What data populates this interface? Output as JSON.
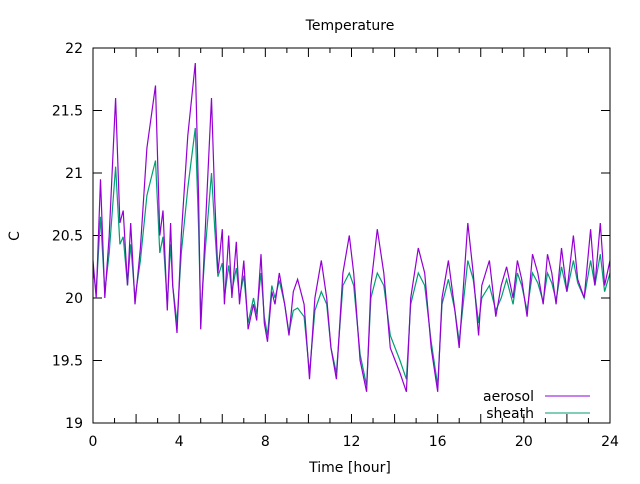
{
  "chart_data": {
    "type": "line",
    "title": "Temperature",
    "xlabel": "Time [hour]",
    "ylabel": "C",
    "xlim": [
      0,
      24
    ],
    "ylim": [
      19,
      22
    ],
    "xticks": [
      0,
      4,
      8,
      12,
      16,
      20,
      24
    ],
    "yticks": [
      19,
      19.5,
      20,
      20.5,
      21,
      21.5,
      22
    ],
    "ytick_labels": [
      "19",
      "19.5",
      "20",
      "20.5",
      "21",
      "21.5",
      "22"
    ],
    "grid": false,
    "legend_position": "bottom-right",
    "x": [
      0,
      0.15,
      0.35,
      0.55,
      0.75,
      1.05,
      1.25,
      1.4,
      1.6,
      1.75,
      1.95,
      2.2,
      2.5,
      2.9,
      3.1,
      3.25,
      3.45,
      3.6,
      3.7,
      3.9,
      4.1,
      4.4,
      4.75,
      4.9,
      5.0,
      5.2,
      5.5,
      5.65,
      5.8,
      6.0,
      6.1,
      6.3,
      6.45,
      6.65,
      6.8,
      7.0,
      7.2,
      7.45,
      7.6,
      7.8,
      7.95,
      8.1,
      8.3,
      8.45,
      8.65,
      8.9,
      9.1,
      9.3,
      9.5,
      9.8,
      10.05,
      10.3,
      10.6,
      10.85,
      11.05,
      11.3,
      11.6,
      11.9,
      12.1,
      12.4,
      12.7,
      12.9,
      13.2,
      13.5,
      13.8,
      14.25,
      14.55,
      14.75,
      15.1,
      15.4,
      15.7,
      16.0,
      16.2,
      16.5,
      16.8,
      17.0,
      17.4,
      17.65,
      17.9,
      18.05,
      18.4,
      18.7,
      18.95,
      19.2,
      19.5,
      19.7,
      19.9,
      20.15,
      20.4,
      20.65,
      20.9,
      21.1,
      21.3,
      21.5,
      21.75,
      22.0,
      22.3,
      22.5,
      22.8,
      23.1,
      23.3,
      23.55,
      23.75,
      24
    ],
    "series": [
      {
        "name": "aerosol",
        "color": "#9400d3",
        "values": [
          20.3,
          20.0,
          20.95,
          20.0,
          20.5,
          21.6,
          20.6,
          20.7,
          20.1,
          20.6,
          19.95,
          20.4,
          21.2,
          21.7,
          20.5,
          20.7,
          19.9,
          20.6,
          20.1,
          19.72,
          20.5,
          21.3,
          21.88,
          20.8,
          19.75,
          20.5,
          21.6,
          20.8,
          20.2,
          20.55,
          19.95,
          20.5,
          20.0,
          20.45,
          19.95,
          20.3,
          19.75,
          19.95,
          19.82,
          20.35,
          19.8,
          19.65,
          20.05,
          19.95,
          20.2,
          19.95,
          19.7,
          20.05,
          20.15,
          19.95,
          19.35,
          20.0,
          20.3,
          20.0,
          19.6,
          19.35,
          20.2,
          20.5,
          20.2,
          19.5,
          19.25,
          20.1,
          20.55,
          20.2,
          19.6,
          19.4,
          19.25,
          20.0,
          20.4,
          20.2,
          19.6,
          19.25,
          20.0,
          20.3,
          19.9,
          19.6,
          20.6,
          20.2,
          19.7,
          20.1,
          20.3,
          19.85,
          20.1,
          20.25,
          20.0,
          20.3,
          20.15,
          19.85,
          20.35,
          20.2,
          19.95,
          20.35,
          20.2,
          19.95,
          20.4,
          20.05,
          20.5,
          20.15,
          20.0,
          20.55,
          20.1,
          20.6,
          20.1,
          20.3
        ]
      },
      {
        "name": "sheath",
        "color": "#009e73",
        "values": [
          20.23,
          20.05,
          20.65,
          20.05,
          20.36,
          21.05,
          20.43,
          20.49,
          20.1,
          20.43,
          20.0,
          20.3,
          20.82,
          21.1,
          20.36,
          20.49,
          19.95,
          20.43,
          20.1,
          19.8,
          20.36,
          20.88,
          21.36,
          20.56,
          19.85,
          20.36,
          21.0,
          20.56,
          20.17,
          20.28,
          20.0,
          20.26,
          20.05,
          20.24,
          20.0,
          20.18,
          19.8,
          20.0,
          19.87,
          20.2,
          19.85,
          19.7,
          20.1,
          20.0,
          20.14,
          19.95,
          19.72,
          19.9,
          19.92,
          19.85,
          19.4,
          19.9,
          20.05,
          19.95,
          19.6,
          19.4,
          20.1,
          20.2,
          20.1,
          19.55,
          19.3,
          20.0,
          20.2,
          20.1,
          19.7,
          19.5,
          19.35,
          19.95,
          20.2,
          20.1,
          19.65,
          19.3,
          19.95,
          20.15,
          19.9,
          19.65,
          20.3,
          20.15,
          19.8,
          20.0,
          20.1,
          19.9,
          20.0,
          20.15,
          19.95,
          20.2,
          20.1,
          19.9,
          20.2,
          20.12,
          19.97,
          20.2,
          20.12,
          19.98,
          20.25,
          20.05,
          20.3,
          20.12,
          20.0,
          20.3,
          20.1,
          20.35,
          20.05,
          20.2
        ]
      }
    ]
  }
}
